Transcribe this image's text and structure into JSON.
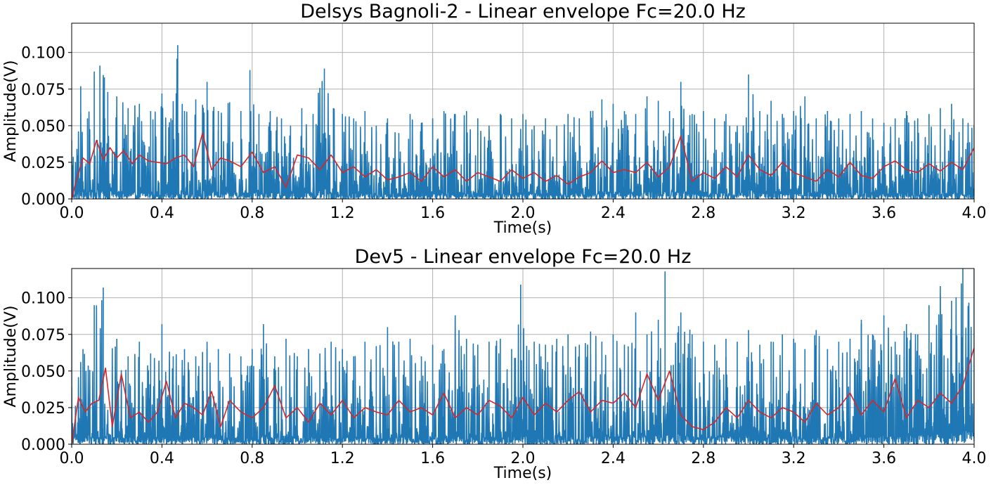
{
  "chart_data": [
    {
      "type": "line",
      "title": "Delsys Bagnoli-2 - Linear envelope Fc=20.0 Hz",
      "xlabel": "Time(s)",
      "ylabel": "Amplitude(V)",
      "xlim": [
        0.0,
        4.0
      ],
      "ylim": [
        0.0,
        0.12
      ],
      "xticks": [
        0.0,
        0.4,
        0.8,
        1.2,
        1.6,
        2.0,
        2.4,
        2.8,
        3.2,
        3.6,
        4.0
      ],
      "xtick_labels": [
        "0.0",
        "0.4",
        "0.8",
        "1.2",
        "1.6",
        "2.0",
        "2.4",
        "2.8",
        "3.2",
        "3.6",
        "4.0"
      ],
      "yticks": [
        0.0,
        0.025,
        0.05,
        0.075,
        0.1
      ],
      "ytick_labels": [
        "0.000",
        "0.025",
        "0.050",
        "0.075",
        "0.100"
      ],
      "grid": true,
      "series": [
        {
          "kind": "rectified-emg",
          "color": "#1f77b4",
          "x": [
            0.0,
            0.04,
            0.07,
            0.1,
            0.125,
            0.145,
            0.16,
            0.2,
            0.25,
            0.3,
            0.35,
            0.4,
            0.44,
            0.47,
            0.5,
            0.55,
            0.6,
            0.65,
            0.7,
            0.75,
            0.79,
            0.83,
            0.88,
            0.93,
            0.97,
            1.02,
            1.07,
            1.12,
            1.16,
            1.2,
            1.25,
            1.3,
            1.35,
            1.4,
            1.45,
            1.5,
            1.55,
            1.6,
            1.65,
            1.7,
            1.75,
            1.8,
            1.85,
            1.9,
            1.95,
            2.0,
            2.05,
            2.1,
            2.15,
            2.2,
            2.25,
            2.3,
            2.35,
            2.4,
            2.45,
            2.5,
            2.55,
            2.6,
            2.65,
            2.7,
            2.75,
            2.8,
            2.85,
            2.9,
            2.95,
            3.0,
            3.05,
            3.1,
            3.15,
            3.2,
            3.25,
            3.3,
            3.35,
            3.4,
            3.45,
            3.5,
            3.55,
            3.6,
            3.65,
            3.7,
            3.75,
            3.8,
            3.85,
            3.9,
            3.95,
            4.0
          ],
          "y": [
            0.04,
            0.077,
            0.055,
            0.087,
            0.091,
            0.083,
            0.073,
            0.07,
            0.062,
            0.065,
            0.06,
            0.072,
            0.055,
            0.105,
            0.06,
            0.068,
            0.08,
            0.06,
            0.066,
            0.06,
            0.088,
            0.058,
            0.06,
            0.055,
            0.05,
            0.062,
            0.058,
            0.089,
            0.062,
            0.058,
            0.055,
            0.06,
            0.05,
            0.055,
            0.045,
            0.058,
            0.052,
            0.055,
            0.06,
            0.058,
            0.06,
            0.055,
            0.05,
            0.058,
            0.055,
            0.058,
            0.05,
            0.055,
            0.05,
            0.058,
            0.055,
            0.06,
            0.068,
            0.065,
            0.06,
            0.058,
            0.07,
            0.067,
            0.06,
            0.08,
            0.058,
            0.06,
            0.055,
            0.058,
            0.05,
            0.085,
            0.06,
            0.067,
            0.058,
            0.06,
            0.07,
            0.055,
            0.06,
            0.055,
            0.058,
            0.06,
            0.055,
            0.052,
            0.055,
            0.06,
            0.055,
            0.058,
            0.062,
            0.065,
            0.055,
            0.05
          ]
        },
        {
          "kind": "linear-envelope",
          "color": "#d62728",
          "x": [
            0.0,
            0.02,
            0.05,
            0.08,
            0.11,
            0.14,
            0.17,
            0.2,
            0.23,
            0.27,
            0.3,
            0.34,
            0.38,
            0.42,
            0.46,
            0.5,
            0.54,
            0.58,
            0.62,
            0.66,
            0.7,
            0.75,
            0.8,
            0.85,
            0.9,
            0.95,
            1.0,
            1.05,
            1.1,
            1.15,
            1.2,
            1.25,
            1.3,
            1.35,
            1.4,
            1.45,
            1.5,
            1.55,
            1.6,
            1.65,
            1.7,
            1.75,
            1.8,
            1.85,
            1.9,
            1.95,
            2.0,
            2.05,
            2.1,
            2.15,
            2.2,
            2.25,
            2.3,
            2.35,
            2.4,
            2.45,
            2.5,
            2.55,
            2.6,
            2.65,
            2.7,
            2.75,
            2.8,
            2.85,
            2.9,
            2.95,
            3.0,
            3.05,
            3.1,
            3.15,
            3.2,
            3.25,
            3.3,
            3.35,
            3.4,
            3.45,
            3.5,
            3.55,
            3.6,
            3.65,
            3.7,
            3.75,
            3.8,
            3.85,
            3.9,
            3.95,
            4.0
          ],
          "y": [
            0.0,
            0.012,
            0.028,
            0.024,
            0.04,
            0.027,
            0.035,
            0.028,
            0.033,
            0.024,
            0.03,
            0.026,
            0.025,
            0.024,
            0.028,
            0.03,
            0.022,
            0.045,
            0.02,
            0.028,
            0.026,
            0.022,
            0.032,
            0.018,
            0.022,
            0.008,
            0.03,
            0.028,
            0.02,
            0.03,
            0.018,
            0.022,
            0.015,
            0.02,
            0.013,
            0.015,
            0.018,
            0.012,
            0.022,
            0.015,
            0.02,
            0.012,
            0.018,
            0.015,
            0.012,
            0.02,
            0.014,
            0.018,
            0.012,
            0.016,
            0.01,
            0.015,
            0.018,
            0.026,
            0.018,
            0.02,
            0.018,
            0.025,
            0.015,
            0.022,
            0.043,
            0.012,
            0.018,
            0.014,
            0.022,
            0.015,
            0.03,
            0.02,
            0.016,
            0.025,
            0.018,
            0.015,
            0.012,
            0.02,
            0.015,
            0.025,
            0.016,
            0.014,
            0.022,
            0.026,
            0.02,
            0.018,
            0.024,
            0.019,
            0.025,
            0.02,
            0.035
          ]
        }
      ]
    },
    {
      "type": "line",
      "title": "Dev5 - Linear envelope Fc=20.0 Hz",
      "xlabel": "Time(s)",
      "ylabel": "Amplitude(V)",
      "xlim": [
        0.0,
        4.0
      ],
      "ylim": [
        0.0,
        0.12
      ],
      "xticks": [
        0.0,
        0.4,
        0.8,
        1.2,
        1.6,
        2.0,
        2.4,
        2.8,
        3.2,
        3.6,
        4.0
      ],
      "xtick_labels": [
        "0.0",
        "0.4",
        "0.8",
        "1.2",
        "1.6",
        "2.0",
        "2.4",
        "2.8",
        "3.2",
        "3.6",
        "4.0"
      ],
      "yticks": [
        0.0,
        0.025,
        0.05,
        0.075,
        0.1
      ],
      "ytick_labels": [
        "0.000",
        "0.025",
        "0.050",
        "0.075",
        "0.100"
      ],
      "grid": true,
      "series": [
        {
          "kind": "rectified-emg",
          "color": "#1f77b4",
          "x": [
            0.0,
            0.05,
            0.1,
            0.14,
            0.2,
            0.25,
            0.3,
            0.35,
            0.4,
            0.45,
            0.5,
            0.55,
            0.6,
            0.65,
            0.7,
            0.75,
            0.8,
            0.85,
            0.9,
            0.95,
            1.0,
            1.05,
            1.1,
            1.15,
            1.2,
            1.25,
            1.3,
            1.35,
            1.4,
            1.45,
            1.5,
            1.55,
            1.6,
            1.65,
            1.7,
            1.75,
            1.8,
            1.85,
            1.9,
            1.95,
            1.99,
            2.05,
            2.1,
            2.15,
            2.2,
            2.25,
            2.3,
            2.35,
            2.4,
            2.45,
            2.5,
            2.55,
            2.6,
            2.63,
            2.7,
            2.75,
            2.8,
            2.85,
            2.9,
            2.95,
            3.0,
            3.05,
            3.1,
            3.15,
            3.2,
            3.25,
            3.3,
            3.35,
            3.4,
            3.45,
            3.5,
            3.55,
            3.6,
            3.65,
            3.7,
            3.75,
            3.8,
            3.85,
            3.9,
            3.95,
            4.0
          ],
          "y": [
            0.075,
            0.065,
            0.095,
            0.107,
            0.072,
            0.06,
            0.07,
            0.062,
            0.082,
            0.06,
            0.065,
            0.06,
            0.07,
            0.065,
            0.062,
            0.06,
            0.065,
            0.082,
            0.06,
            0.072,
            0.06,
            0.065,
            0.062,
            0.07,
            0.065,
            0.06,
            0.07,
            0.067,
            0.08,
            0.07,
            0.072,
            0.06,
            0.068,
            0.065,
            0.088,
            0.072,
            0.068,
            0.07,
            0.072,
            0.065,
            0.109,
            0.07,
            0.068,
            0.072,
            0.075,
            0.068,
            0.077,
            0.07,
            0.075,
            0.068,
            0.09,
            0.075,
            0.085,
            0.118,
            0.09,
            0.075,
            0.07,
            0.068,
            0.072,
            0.07,
            0.078,
            0.068,
            0.07,
            0.075,
            0.072,
            0.065,
            0.078,
            0.065,
            0.07,
            0.072,
            0.085,
            0.075,
            0.088,
            0.07,
            0.082,
            0.075,
            0.095,
            0.108,
            0.098,
            0.12,
            0.12
          ]
        },
        {
          "kind": "linear-envelope",
          "color": "#d62728",
          "x": [
            0.0,
            0.03,
            0.06,
            0.09,
            0.12,
            0.15,
            0.18,
            0.22,
            0.26,
            0.3,
            0.34,
            0.38,
            0.42,
            0.46,
            0.5,
            0.54,
            0.58,
            0.62,
            0.66,
            0.7,
            0.75,
            0.8,
            0.85,
            0.9,
            0.95,
            1.0,
            1.05,
            1.1,
            1.15,
            1.2,
            1.25,
            1.3,
            1.35,
            1.4,
            1.45,
            1.5,
            1.55,
            1.6,
            1.65,
            1.7,
            1.75,
            1.8,
            1.85,
            1.9,
            1.95,
            2.0,
            2.05,
            2.1,
            2.15,
            2.2,
            2.25,
            2.3,
            2.35,
            2.4,
            2.45,
            2.5,
            2.55,
            2.6,
            2.65,
            2.7,
            2.75,
            2.8,
            2.85,
            2.9,
            2.95,
            3.0,
            3.05,
            3.1,
            3.15,
            3.2,
            3.25,
            3.3,
            3.35,
            3.4,
            3.45,
            3.5,
            3.55,
            3.6,
            3.65,
            3.7,
            3.75,
            3.8,
            3.85,
            3.9,
            3.95,
            4.0
          ],
          "y": [
            0.0,
            0.032,
            0.022,
            0.028,
            0.03,
            0.052,
            0.012,
            0.048,
            0.018,
            0.022,
            0.015,
            0.022,
            0.043,
            0.018,
            0.028,
            0.025,
            0.02,
            0.036,
            0.012,
            0.03,
            0.022,
            0.018,
            0.025,
            0.04,
            0.018,
            0.025,
            0.015,
            0.028,
            0.02,
            0.03,
            0.018,
            0.025,
            0.022,
            0.02,
            0.03,
            0.022,
            0.025,
            0.02,
            0.035,
            0.018,
            0.025,
            0.02,
            0.03,
            0.026,
            0.018,
            0.032,
            0.02,
            0.028,
            0.022,
            0.03,
            0.036,
            0.022,
            0.03,
            0.028,
            0.035,
            0.025,
            0.048,
            0.03,
            0.05,
            0.02,
            0.012,
            0.01,
            0.015,
            0.025,
            0.018,
            0.03,
            0.022,
            0.018,
            0.025,
            0.022,
            0.015,
            0.028,
            0.02,
            0.025,
            0.035,
            0.02,
            0.03,
            0.022,
            0.045,
            0.018,
            0.03,
            0.025,
            0.035,
            0.028,
            0.04,
            0.066
          ]
        }
      ]
    }
  ]
}
